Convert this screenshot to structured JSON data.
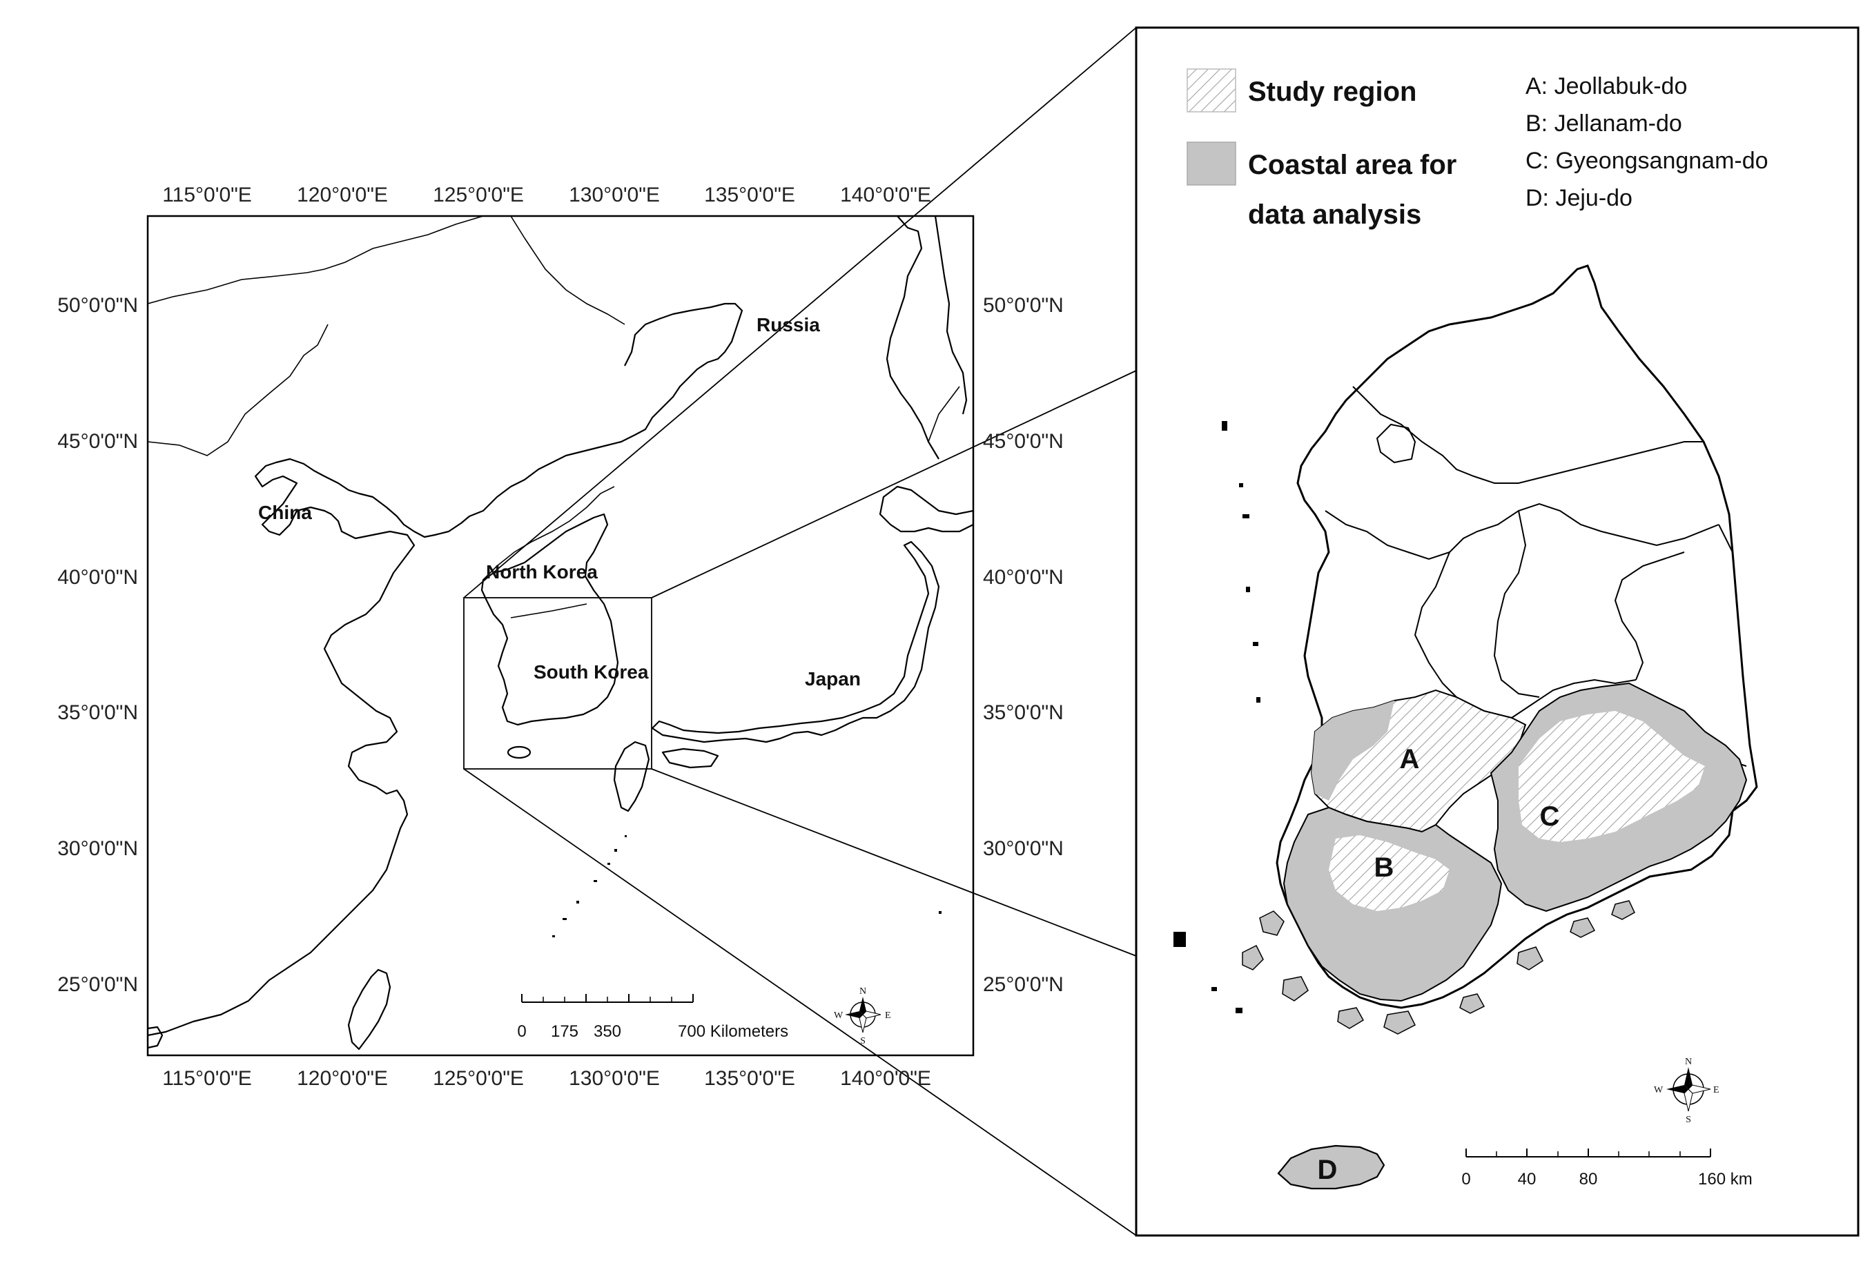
{
  "overview_map": {
    "lon_labels": [
      "115°0'0\"E",
      "120°0'0\"E",
      "125°0'0\"E",
      "130°0'0\"E",
      "135°0'0\"E",
      "140°0'0\"E"
    ],
    "lat_labels": [
      "50°0'0\"N",
      "45°0'0\"N",
      "40°0'0\"N",
      "35°0'0\"N",
      "30°0'0\"N",
      "25°0'0\"N"
    ],
    "countries": {
      "russia": "Russia",
      "china": "China",
      "north_korea": "North Korea",
      "south_korea": "South Korea",
      "japan": "Japan"
    },
    "scale_bar": {
      "ticks": [
        "0",
        "175",
        "350",
        "700 Kilometers"
      ]
    },
    "compass": {
      "n": "N",
      "e": "E",
      "s": "S",
      "w": "W"
    }
  },
  "detail_map": {
    "legend": {
      "study_region": "Study region",
      "coastal_line1": "Coastal area for",
      "coastal_line2": "data analysis",
      "keys": [
        "A: Jeollabuk-do",
        "B: Jellanam-do",
        "C: Gyeongsangnam-do",
        "D: Jeju-do"
      ]
    },
    "region_labels": {
      "a": "A",
      "b": "B",
      "c": "C",
      "d": "D"
    },
    "scale_bar": {
      "ticks": [
        "0",
        "40",
        "80",
        "160 km"
      ]
    },
    "compass": {
      "n": "N",
      "e": "E",
      "s": "S",
      "w": "W"
    },
    "colors": {
      "coastal_fill": "#c4c4c4",
      "study_hatch": "#9a9a9a"
    }
  }
}
